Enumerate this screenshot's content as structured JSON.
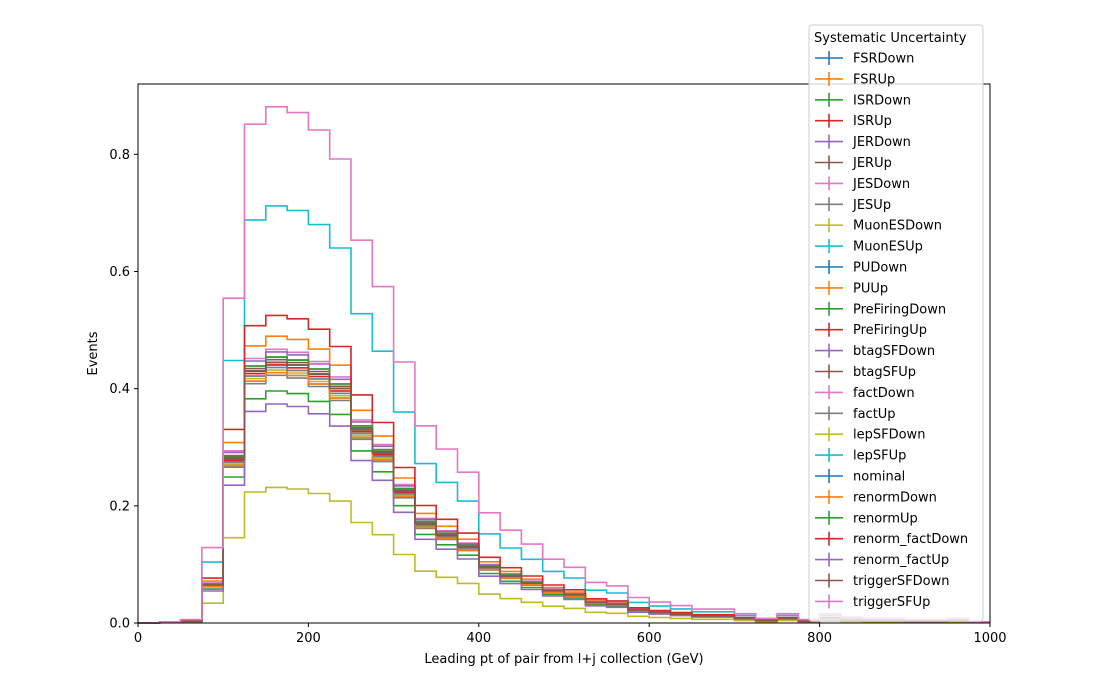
{
  "chart_data": {
    "type": "line",
    "subtype": "step-histogram",
    "xlabel": "Leading pt of pair from l+j collection (GeV)",
    "ylabel": "Events",
    "xlim": [
      0,
      1000
    ],
    "ylim": [
      0,
      0.92
    ],
    "xticks": [
      0,
      200,
      400,
      600,
      800,
      1000
    ],
    "yticks": [
      0.0,
      0.2,
      0.4,
      0.6,
      0.8
    ],
    "ytick_labels": [
      "0.0",
      "0.2",
      "0.4",
      "0.6",
      "0.8"
    ],
    "grid": false,
    "legend": {
      "title": "Systematic Uncertainty",
      "placement": "top-right, extending above the plot"
    },
    "bin_edges": [
      0,
      25,
      50,
      75,
      100,
      125,
      150,
      175,
      200,
      225,
      250,
      275,
      300,
      325,
      350,
      375,
      400,
      425,
      450,
      475,
      500,
      525,
      550,
      575,
      600,
      625,
      650,
      675,
      700,
      725,
      750,
      775,
      800,
      825,
      850,
      875,
      900,
      925,
      950,
      975,
      1000
    ],
    "base_shape": [
      0,
      0.001,
      0.003,
      0.065,
      0.28,
      0.43,
      0.445,
      0.44,
      0.425,
      0.4,
      0.33,
      0.29,
      0.225,
      0.17,
      0.15,
      0.13,
      0.095,
      0.08,
      0.068,
      0.055,
      0.048,
      0.035,
      0.032,
      0.022,
      0.018,
      0.015,
      0.012,
      0.012,
      0.008,
      0.004,
      0.008,
      0.003,
      0.008,
      0.005,
      0.004,
      0.004,
      0.003,
      0.003,
      0.004,
      0.001
    ],
    "series": [
      {
        "name": "FSRDown",
        "color": "#1f77b4",
        "scale": 1.0
      },
      {
        "name": "FSRUp",
        "color": "#ff7f0e",
        "scale": 1.1
      },
      {
        "name": "ISRDown",
        "color": "#2ca02c",
        "scale": 0.89
      },
      {
        "name": "ISRUp",
        "color": "#d62728",
        "scale": 1.0
      },
      {
        "name": "JERDown",
        "color": "#9467bd",
        "scale": 1.02
      },
      {
        "name": "JERUp",
        "color": "#8c564b",
        "scale": 1.01
      },
      {
        "name": "JESDown",
        "color": "#e377c2",
        "scale": 1.05
      },
      {
        "name": "JESUp",
        "color": "#7f7f7f",
        "scale": 0.95
      },
      {
        "name": "MuonESDown",
        "color": "#bcbd22",
        "scale": 0.97
      },
      {
        "name": "MuonESUp",
        "color": "#17becf",
        "scale": 0.98
      },
      {
        "name": "PUDown",
        "color": "#1f77b4",
        "scale": 1.0
      },
      {
        "name": "PUUp",
        "color": "#ff7f0e",
        "scale": 0.99
      },
      {
        "name": "PreFiringDown",
        "color": "#2ca02c",
        "scale": 1.0
      },
      {
        "name": "PreFiringUp",
        "color": "#d62728",
        "scale": 0.99
      },
      {
        "name": "btagSFDown",
        "color": "#9467bd",
        "scale": 1.04
      },
      {
        "name": "btagSFUp",
        "color": "#8c564b",
        "scale": 0.96
      },
      {
        "name": "factDown",
        "color": "#e377c2",
        "scale": 1.02
      },
      {
        "name": "factUp",
        "color": "#7f7f7f",
        "scale": 0.98
      },
      {
        "name": "lepSFDown",
        "color": "#bcbd22",
        "scale": 0.52
      },
      {
        "name": "lepSFUp",
        "color": "#17becf",
        "scale": 1.6
      },
      {
        "name": "nominal",
        "color": "#1f77b4",
        "scale": 1.0
      },
      {
        "name": "renormDown",
        "color": "#ff7f0e",
        "scale": 0.96
      },
      {
        "name": "renormUp",
        "color": "#2ca02c",
        "scale": 1.02
      },
      {
        "name": "renorm_factDown",
        "color": "#d62728",
        "scale": 1.18
      },
      {
        "name": "renorm_factUp",
        "color": "#9467bd",
        "scale": 0.84
      },
      {
        "name": "triggerSFDown",
        "color": "#8c564b",
        "scale": 1.0
      },
      {
        "name": "triggerSFUp",
        "color": "#e377c2",
        "scale": 1.98
      }
    ]
  }
}
